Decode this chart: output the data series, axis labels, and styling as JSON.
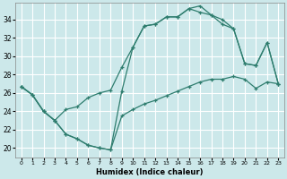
{
  "xlabel": "Humidex (Indice chaleur)",
  "bg_color": "#cce8ea",
  "grid_color": "#ffffff",
  "line_color": "#2e7d6e",
  "xlim": [
    -0.5,
    23.5
  ],
  "ylim": [
    19.0,
    35.8
  ],
  "xticks": [
    0,
    1,
    2,
    3,
    4,
    5,
    6,
    7,
    8,
    9,
    10,
    11,
    12,
    13,
    14,
    15,
    16,
    17,
    18,
    19,
    20,
    21,
    22,
    23
  ],
  "yticks": [
    20,
    22,
    24,
    26,
    28,
    30,
    32,
    34
  ],
  "curve1_x": [
    0,
    1,
    2,
    3,
    4,
    5,
    6,
    7,
    8,
    9,
    10,
    11,
    12,
    13,
    14,
    15,
    16,
    17,
    18,
    19,
    20,
    21,
    22,
    23
  ],
  "curve1_y": [
    26.7,
    25.8,
    24.0,
    23.0,
    21.5,
    21.0,
    20.3,
    20.0,
    19.8,
    23.5,
    24.2,
    24.8,
    25.2,
    25.7,
    26.2,
    26.7,
    27.2,
    27.5,
    27.5,
    27.8,
    27.5,
    26.5,
    27.2,
    27.0
  ],
  "curve2_x": [
    0,
    1,
    2,
    3,
    4,
    5,
    6,
    7,
    8,
    9,
    10,
    11,
    12,
    13,
    14,
    15,
    16,
    17,
    18,
    19,
    20,
    21,
    22,
    23
  ],
  "curve2_y": [
    26.7,
    25.8,
    24.0,
    23.0,
    24.2,
    24.5,
    25.5,
    26.0,
    26.3,
    28.8,
    31.0,
    33.3,
    33.5,
    34.3,
    34.3,
    35.2,
    34.8,
    34.5,
    33.5,
    33.0,
    29.2,
    29.0,
    31.5,
    27.0
  ],
  "curve3_x": [
    0,
    1,
    2,
    3,
    4,
    5,
    6,
    7,
    8,
    9,
    10,
    11,
    12,
    13,
    14,
    15,
    16,
    17,
    18,
    19,
    20,
    21,
    22,
    23
  ],
  "curve3_y": [
    26.7,
    25.8,
    24.0,
    23.0,
    21.5,
    21.0,
    20.3,
    20.0,
    19.8,
    26.2,
    31.0,
    33.3,
    33.5,
    34.3,
    34.3,
    35.2,
    35.5,
    34.5,
    34.0,
    33.0,
    29.2,
    29.0,
    31.5,
    27.0
  ]
}
